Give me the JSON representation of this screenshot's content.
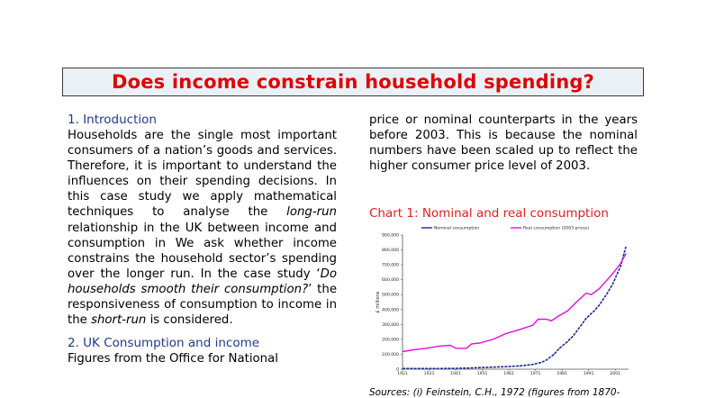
{
  "title": "Does income constrain household spending?",
  "left_column": {
    "section1_heading": "1. Introduction",
    "section1_parts": [
      "Households are the single most important consumers of a nation’s goods and services. Therefore, it is important to understand the influences on their spending decisions. In this case study we apply mathematical techniques to analyse the ",
      "long-run",
      " relationship in the UK between income and consumption in We ask whether income constrains the household sector’s spending over the longer run. In the case study ‘",
      "Do households smooth their consumption?",
      "’ the responsiveness of consumption to income in the ",
      "short-run",
      " is considered."
    ],
    "section2_heading": "2. UK Consumption and income",
    "section2_text": "Figures from the Office for National"
  },
  "right_column": {
    "paragraph": "price or nominal counterparts in the years before 2003. This is because the nominal numbers have been scaled up to reflect the higher consumer price level of 2003.",
    "chart_title": "Chart 1: Nominal and real consumption",
    "sources": "Sources: (i) Feinstein, C.H., 1972 (figures from 1870-"
  },
  "chart_data": {
    "type": "line",
    "title": "",
    "ylabel": "£ millions",
    "xlabel": "",
    "ylim": [
      0,
      900000
    ],
    "xlim": [
      1921,
      2006
    ],
    "yticks": [
      "0",
      "100,000",
      "200,000",
      "300,000",
      "400,000",
      "500,000",
      "600,000",
      "700,000",
      "800,000",
      "900,000"
    ],
    "ytick_values": [
      0,
      100000,
      200000,
      300000,
      400000,
      500000,
      600000,
      700000,
      800000,
      900000
    ],
    "xticks": [
      "1921",
      "1931",
      "1941",
      "1951",
      "1961",
      "1971",
      "1981",
      "1991",
      "2001"
    ],
    "xtick_values": [
      1921,
      1931,
      1941,
      1951,
      1961,
      1971,
      1981,
      1991,
      2001
    ],
    "legend_position": "top",
    "grid": false,
    "series": [
      {
        "name": "Nominal consumption",
        "color": "#1a2a8c",
        "style": "dashed",
        "x": [
          1921,
          1930,
          1940,
          1950,
          1960,
          1965,
          1970,
          1973,
          1975,
          1978,
          1980,
          1983,
          1985,
          1988,
          1990,
          1993,
          1995,
          1998,
          2000,
          2003,
          2005
        ],
        "values": [
          4000,
          4000,
          5000,
          10000,
          17000,
          22000,
          32000,
          45000,
          60000,
          100000,
          140000,
          185000,
          220000,
          290000,
          340000,
          390000,
          430000,
          510000,
          570000,
          690000,
          820000
        ]
      },
      {
        "name": "Real consumption (2003 prices)",
        "color": "#e010e0",
        "style": "solid",
        "x": [
          1921,
          1925,
          1930,
          1935,
          1939,
          1941,
          1945,
          1947,
          1950,
          1955,
          1960,
          1965,
          1970,
          1972,
          1975,
          1977,
          1980,
          1983,
          1987,
          1990,
          1992,
          1995,
          1998,
          2000,
          2003,
          2005
        ],
        "values": [
          118000,
          130000,
          140000,
          155000,
          160000,
          140000,
          140000,
          170000,
          175000,
          200000,
          240000,
          265000,
          295000,
          335000,
          335000,
          325000,
          360000,
          390000,
          460000,
          510000,
          500000,
          540000,
          600000,
          640000,
          710000,
          775000
        ]
      }
    ]
  }
}
